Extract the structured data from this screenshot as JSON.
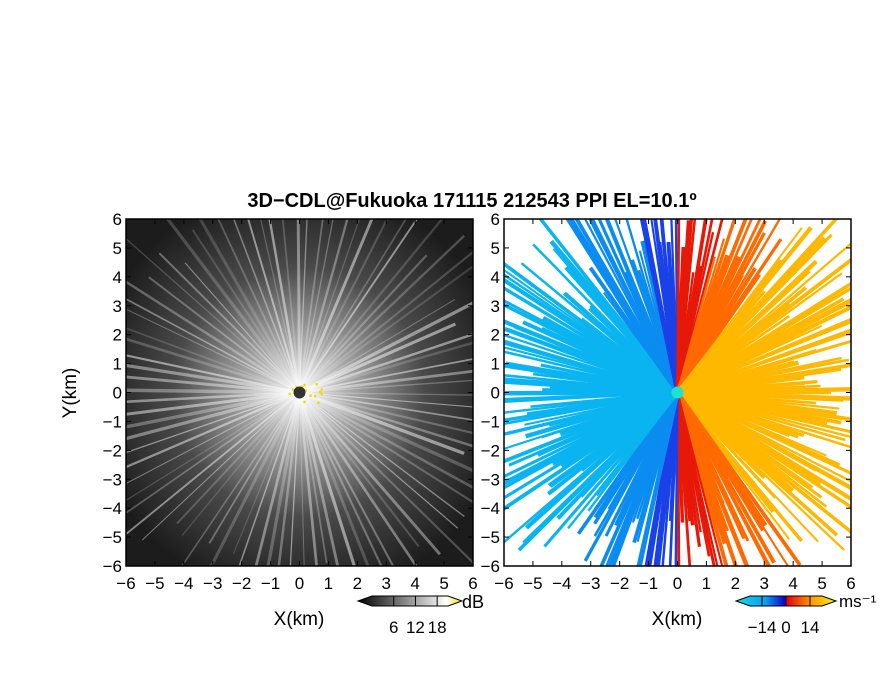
{
  "title": "3D−CDL@Fukuoka 171115 212543 PPI EL=10.1º",
  "ylabel": "Y(km)",
  "chart_data": [
    {
      "type": "heatmap",
      "panel": "reflectivity",
      "xlabel": "X(km)",
      "ylabel": "Y(km)",
      "xlim": [
        -6,
        6
      ],
      "ylim": [
        -6,
        6
      ],
      "xticks": [
        -6,
        -5,
        -4,
        -3,
        -2,
        -1,
        0,
        1,
        2,
        3,
        4,
        5,
        6
      ],
      "yticks": [
        -6,
        -5,
        -4,
        -3,
        -2,
        -1,
        0,
        1,
        2,
        3,
        4,
        5,
        6
      ],
      "grid": false,
      "colorbar": {
        "label": "dB",
        "ticks": [
          6,
          12,
          18
        ],
        "range": [
          0,
          21
        ],
        "colors": [
          "#000000",
          "#ffffff",
          "#f2dd00"
        ]
      }
    },
    {
      "type": "heatmap",
      "panel": "doppler-velocity",
      "xlabel": "X(km)",
      "xlim": [
        -6,
        6
      ],
      "ylim": [
        -6,
        6
      ],
      "xticks": [
        -6,
        -5,
        -4,
        -3,
        -2,
        -1,
        0,
        1,
        2,
        3,
        4,
        5,
        6
      ],
      "yticks": [
        -6,
        -5,
        -4,
        -3,
        -2,
        -1,
        0,
        1,
        2,
        3,
        4,
        5,
        6
      ],
      "grid": false,
      "colorbar": {
        "label": "ms⁻¹",
        "ticks": [
          -14,
          0,
          14
        ],
        "range": [
          -21,
          21
        ],
        "colors": [
          "#18d8e8",
          "#0a9cf0",
          "#1a3cf0",
          "#1000c8",
          "#e80010",
          "#ff4400",
          "#ff9900",
          "#ffcc00",
          "#ffee10"
        ]
      }
    }
  ]
}
